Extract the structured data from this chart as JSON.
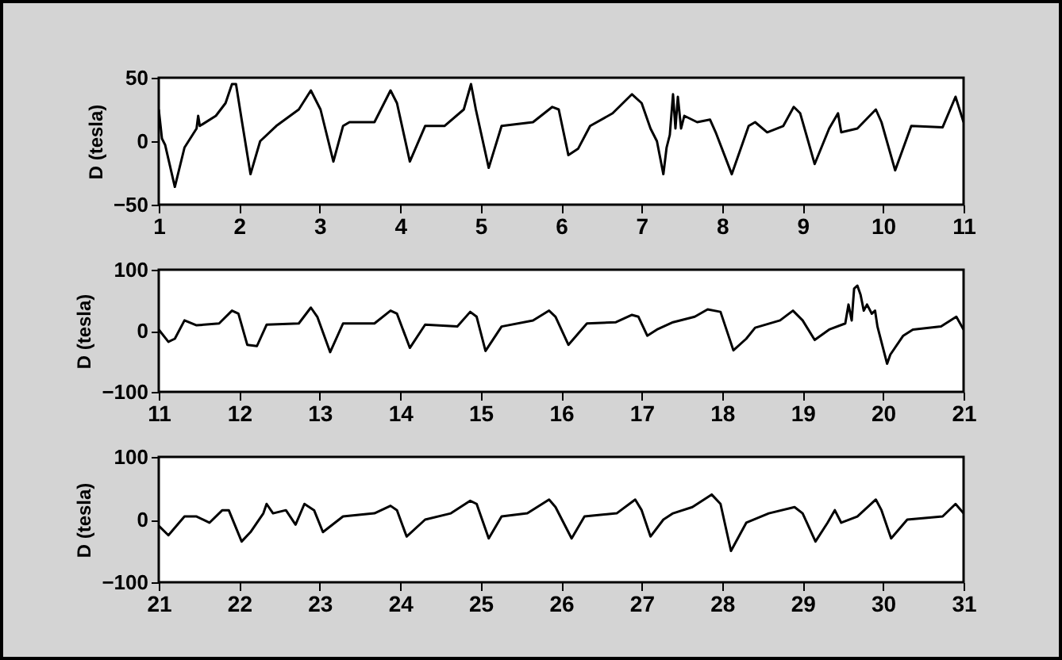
{
  "chart_data": [
    {
      "type": "line",
      "ylabel": "D (tesla)",
      "color": "#000000",
      "xlim": [
        1,
        11
      ],
      "ylim": [
        -50,
        50
      ],
      "xticks": [
        1,
        2,
        3,
        4,
        5,
        6,
        7,
        8,
        9,
        10,
        11
      ],
      "yticks": [
        -50,
        0,
        50
      ],
      "grid": false,
      "x": [
        1,
        1.04,
        1.08,
        1.2,
        1.32,
        1.47,
        1.49,
        1.51,
        1.71,
        1.83,
        1.91,
        1.96,
        2.03,
        2.14,
        2.26,
        2.46,
        2.74,
        2.89,
        3.01,
        3.17,
        3.29,
        3.37,
        3.68,
        3.88,
        3.96,
        4.12,
        4.31,
        4.55,
        4.79,
        4.88,
        4.94,
        5.1,
        5.26,
        5.65,
        5.89,
        5.97,
        6.09,
        6.21,
        6.36,
        6.64,
        6.88,
        7,
        7.11,
        7.19,
        7.27,
        7.31,
        7.35,
        7.39,
        7.42,
        7.45,
        7.49,
        7.53,
        7.69,
        7.85,
        7.92,
        8.12,
        8.33,
        8.41,
        8.56,
        8.76,
        8.89,
        8.97,
        9.15,
        9.33,
        9.44,
        9.48,
        9.68,
        9.91,
        9.98,
        10.15,
        10.35,
        10.74,
        10.9,
        11
      ],
      "values": [
        25,
        2,
        -3,
        -36,
        -5,
        10,
        20,
        12,
        20,
        30,
        45,
        45,
        17,
        -26,
        0,
        12,
        25,
        40,
        25,
        -16,
        12,
        15,
        15,
        40,
        30,
        -16,
        12,
        12,
        25,
        45,
        25,
        -21,
        12,
        15,
        27,
        25,
        -11,
        -6,
        12,
        22,
        37,
        30,
        10,
        0,
        -26,
        -5,
        5,
        37,
        10,
        35,
        10,
        20,
        15,
        17,
        7,
        -26,
        12,
        15,
        7,
        12,
        27,
        22,
        -18,
        10,
        22,
        7,
        10,
        25,
        15,
        -23,
        12,
        11,
        35,
        15
      ]
    },
    {
      "type": "line",
      "ylabel": "D (tesla)",
      "color": "#000000",
      "xlim": [
        11,
        21
      ],
      "ylim": [
        -100,
        100
      ],
      "xticks": [
        11,
        12,
        13,
        14,
        15,
        16,
        17,
        18,
        19,
        20,
        21
      ],
      "yticks": [
        -100,
        0,
        100
      ],
      "grid": false,
      "x": [
        11,
        11.12,
        11.2,
        11.32,
        11.47,
        11.75,
        11.91,
        11.99,
        12.1,
        12.22,
        12.34,
        12.74,
        12.89,
        12.97,
        13.13,
        13.29,
        13.68,
        13.88,
        13.96,
        14.12,
        14.31,
        14.71,
        14.87,
        14.95,
        15.06,
        15.26,
        15.65,
        15.85,
        15.93,
        16.09,
        16.32,
        16.68,
        16.88,
        16.96,
        17.07,
        17.19,
        17.39,
        17.66,
        17.82,
        17.98,
        18.14,
        18.3,
        18.41,
        18.72,
        18.88,
        19,
        19.15,
        19.33,
        19.53,
        19.57,
        19.61,
        19.64,
        19.68,
        19.72,
        19.76,
        19.8,
        19.86,
        19.9,
        19.93,
        20.05,
        20.09,
        20.25,
        20.37,
        20.72,
        20.91,
        21
      ],
      "values": [
        2,
        -18,
        -13,
        17,
        9,
        12,
        33,
        28,
        -23,
        -25,
        10,
        12,
        38,
        23,
        -35,
        12,
        12,
        33,
        28,
        -28,
        10,
        7,
        31,
        23,
        -33,
        7,
        17,
        33,
        23,
        -23,
        12,
        14,
        26,
        23,
        -8,
        2,
        14,
        23,
        35,
        31,
        -32,
        -13,
        5,
        17,
        33,
        17,
        -15,
        2,
        12,
        43,
        17,
        69,
        74,
        59,
        33,
        43,
        28,
        33,
        7,
        -54,
        -39,
        -8,
        2,
        7,
        23,
        2
      ]
    },
    {
      "type": "line",
      "ylabel": "D (tesla)",
      "color": "#000000",
      "xlim": [
        21,
        31
      ],
      "ylim": [
        -100,
        100
      ],
      "xticks": [
        21,
        22,
        23,
        24,
        25,
        26,
        27,
        28,
        29,
        30,
        31
      ],
      "yticks": [
        -100,
        0,
        100
      ],
      "grid": false,
      "x": [
        21,
        21.12,
        21.32,
        21.47,
        21.63,
        21.79,
        21.87,
        22.03,
        22.14,
        22.3,
        22.34,
        22.42,
        22.58,
        22.7,
        22.81,
        22.93,
        23.04,
        23.29,
        23.68,
        23.88,
        23.96,
        24.08,
        24.31,
        24.63,
        24.87,
        24.95,
        25.1,
        25.26,
        25.58,
        25.85,
        25.93,
        26.13,
        26.29,
        26.69,
        26.92,
        27,
        27.11,
        27.27,
        27.39,
        27.63,
        27.87,
        27.98,
        28.11,
        28.3,
        28.58,
        28.9,
        29,
        29.16,
        29.31,
        29.4,
        29.48,
        29.68,
        29.91,
        29.98,
        30.1,
        30.3,
        30.74,
        30.9,
        31
      ],
      "values": [
        -10,
        -25,
        5,
        5,
        -5,
        15,
        15,
        -35,
        -20,
        10,
        25,
        10,
        15,
        -8,
        25,
        15,
        -20,
        5,
        10,
        22,
        15,
        -27,
        0,
        10,
        30,
        25,
        -30,
        5,
        10,
        32,
        20,
        -30,
        5,
        10,
        32,
        15,
        -27,
        0,
        10,
        20,
        40,
        25,
        -50,
        -5,
        10,
        20,
        10,
        -35,
        -5,
        15,
        -5,
        5,
        32,
        15,
        -30,
        0,
        5,
        25,
        10
      ]
    }
  ]
}
